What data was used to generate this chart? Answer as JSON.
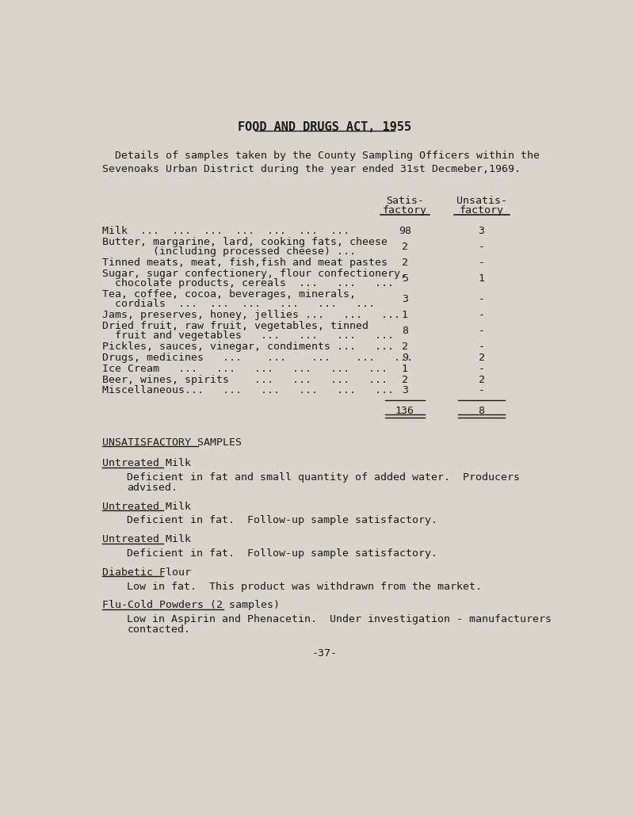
{
  "title": "FOOD AND DRUGS ACT, 1955",
  "intro_line1": "Details of samples taken by the County Sampling Officers within the",
  "intro_line2": "Sevenoaks Urban District during the year ended 31st Decmeber,1969.",
  "col_header1_line1": "Satis-",
  "col_header1_line2": "factory",
  "col_header2_line1": "Unsatis-",
  "col_header2_line2": "factory",
  "rows": [
    {
      "label_lines": [
        "Milk  ...  ...  ...  ...  ...  ...  ..."
      ],
      "satis": "98",
      "unsatis": "3"
    },
    {
      "label_lines": [
        "Butter, margarine, lard, cooking fats, cheese",
        "        (including processed cheese) ..."
      ],
      "satis": "2",
      "unsatis": "-"
    },
    {
      "label_lines": [
        "Tinned meats, meat, fish,fish and meat pastes"
      ],
      "satis": "2",
      "unsatis": "-"
    },
    {
      "label_lines": [
        "Sugar, sugar confectionery, flour confectionery,",
        "  chocolate products, cereals  ...   ...   ..."
      ],
      "satis": "5",
      "unsatis": "1"
    },
    {
      "label_lines": [
        "Tea, coffee, cocoa, beverages, minerals,",
        "  cordials  ...  ...  ...   ...   ...   ..."
      ],
      "satis": "3",
      "unsatis": "-"
    },
    {
      "label_lines": [
        "Jams, preserves, honey, jellies ...   ...   ..."
      ],
      "satis": "1",
      "unsatis": "-"
    },
    {
      "label_lines": [
        "Dried fruit, raw fruit, vegetables, tinned",
        "  fruit and vegetables   ...   ...   ...   ..."
      ],
      "satis": "8",
      "unsatis": "-"
    },
    {
      "label_lines": [
        "Pickles, sauces, vinegar, condiments ...   ..."
      ],
      "satis": "2",
      "unsatis": "-"
    },
    {
      "label_lines": [
        "Drugs, medicines   ...    ...    ...    ...   ..."
      ],
      "satis": "9",
      "unsatis": "2"
    },
    {
      "label_lines": [
        "Ice Cream   ...   ...   ...   ...   ...   ..."
      ],
      "satis": "1",
      "unsatis": "-"
    },
    {
      "label_lines": [
        "Beer, wines, spirits    ...   ...   ...   ..."
      ],
      "satis": "2",
      "unsatis": "2"
    },
    {
      "label_lines": [
        "Miscellaneous...   ...   ...   ...   ...   ..."
      ],
      "satis": "3",
      "unsatis": "-"
    }
  ],
  "total_satis": "136",
  "total_unsatis": "8",
  "section2_title": "UNSATISFACTORY SAMPLES",
  "section2_items": [
    {
      "subtitle": "Untreated Milk",
      "text": "Deficient in fat and small quantity of added water.  Producers\nadvised."
    },
    {
      "subtitle": "Untreated Milk",
      "text": "Deficient in fat.  Follow-up sample satisfactory."
    },
    {
      "subtitle": "Untreated Milk",
      "text": "Deficient in fat.  Follow-up sample satisfactory."
    },
    {
      "subtitle": "Diabetic Flour",
      "text": "Low in fat.  This product was withdrawn from the market."
    },
    {
      "subtitle": "Flu-Cold Powders (2 samples)",
      "text": "Low in Aspirin and Phenacetin.  Under investigation - manufacturers\ncontacted."
    }
  ],
  "footer": "-37-",
  "bg_color": "#d9d5cc",
  "text_color": "#1a1a1a",
  "font_size": 9.5,
  "title_font_size": 11
}
